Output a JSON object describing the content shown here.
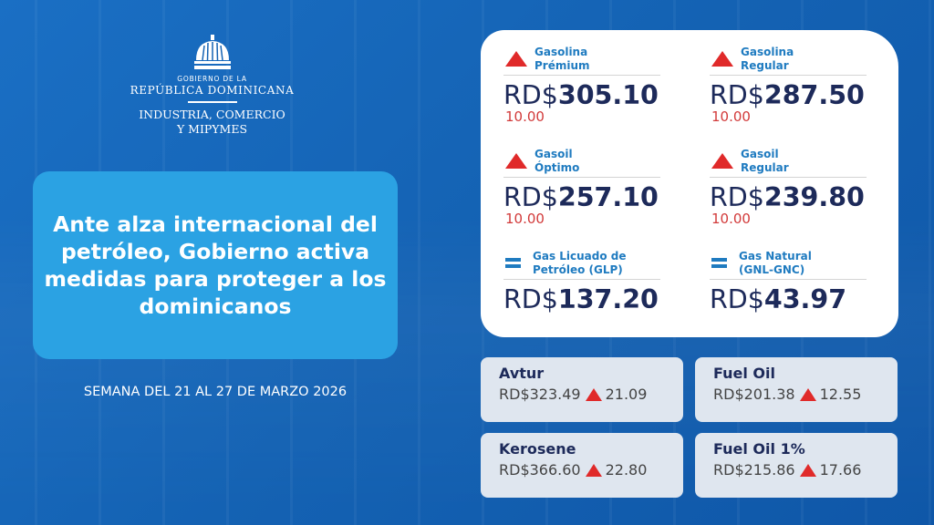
{
  "logo": {
    "gob": "GOBIERNO DE LA",
    "rep": "REPÚBLICA DOMINICANA",
    "ministry_line1": "INDUSTRIA, COMERCIO",
    "ministry_line2": "Y MIPYMES"
  },
  "headline": "Ante alza internacional del petróleo, Gobierno activa medidas para proteger a los dominicanos",
  "week": "SEMANA DEL 21 AL 27 DE MARZO 2026",
  "colors": {
    "background": "#1462b3",
    "headline_box": "#2ba2e3",
    "up": "#e02a2a",
    "label": "#1f7bc0",
    "price": "#1d2a5a"
  },
  "fuels": [
    {
      "label1": "Gasolina",
      "label2": "Prémium",
      "currency": "RD$",
      "price": "305.10",
      "change": "10.00",
      "trend": "up"
    },
    {
      "label1": "Gasolina",
      "label2": "Regular",
      "currency": "RD$",
      "price": "287.50",
      "change": "10.00",
      "trend": "up"
    },
    {
      "label1": "Gasoil",
      "label2": "Óptimo",
      "currency": "RD$",
      "price": "257.10",
      "change": "10.00",
      "trend": "up"
    },
    {
      "label1": "Gasoil",
      "label2": "Regular",
      "currency": "RD$",
      "price": "239.80",
      "change": "10.00",
      "trend": "up"
    },
    {
      "label1": "Gas Licuado de",
      "label2": "Petróleo (GLP)",
      "currency": "RD$",
      "price": "137.20",
      "trend": "equal"
    },
    {
      "label1": "Gas Natural",
      "label2": "(GNL-GNC)",
      "currency": "RD$",
      "price": "43.97",
      "trend": "equal"
    }
  ],
  "others": [
    {
      "name": "Avtur",
      "price": "RD$323.49",
      "change": "21.09",
      "trend": "up"
    },
    {
      "name": "Fuel Oil",
      "price": "RD$201.38",
      "change": "12.55",
      "trend": "up"
    },
    {
      "name": "Kerosene",
      "price": "RD$366.60",
      "change": "22.80",
      "trend": "up"
    },
    {
      "name": "Fuel Oil 1%",
      "price": "RD$215.86",
      "change": "17.66",
      "trend": "up"
    }
  ]
}
